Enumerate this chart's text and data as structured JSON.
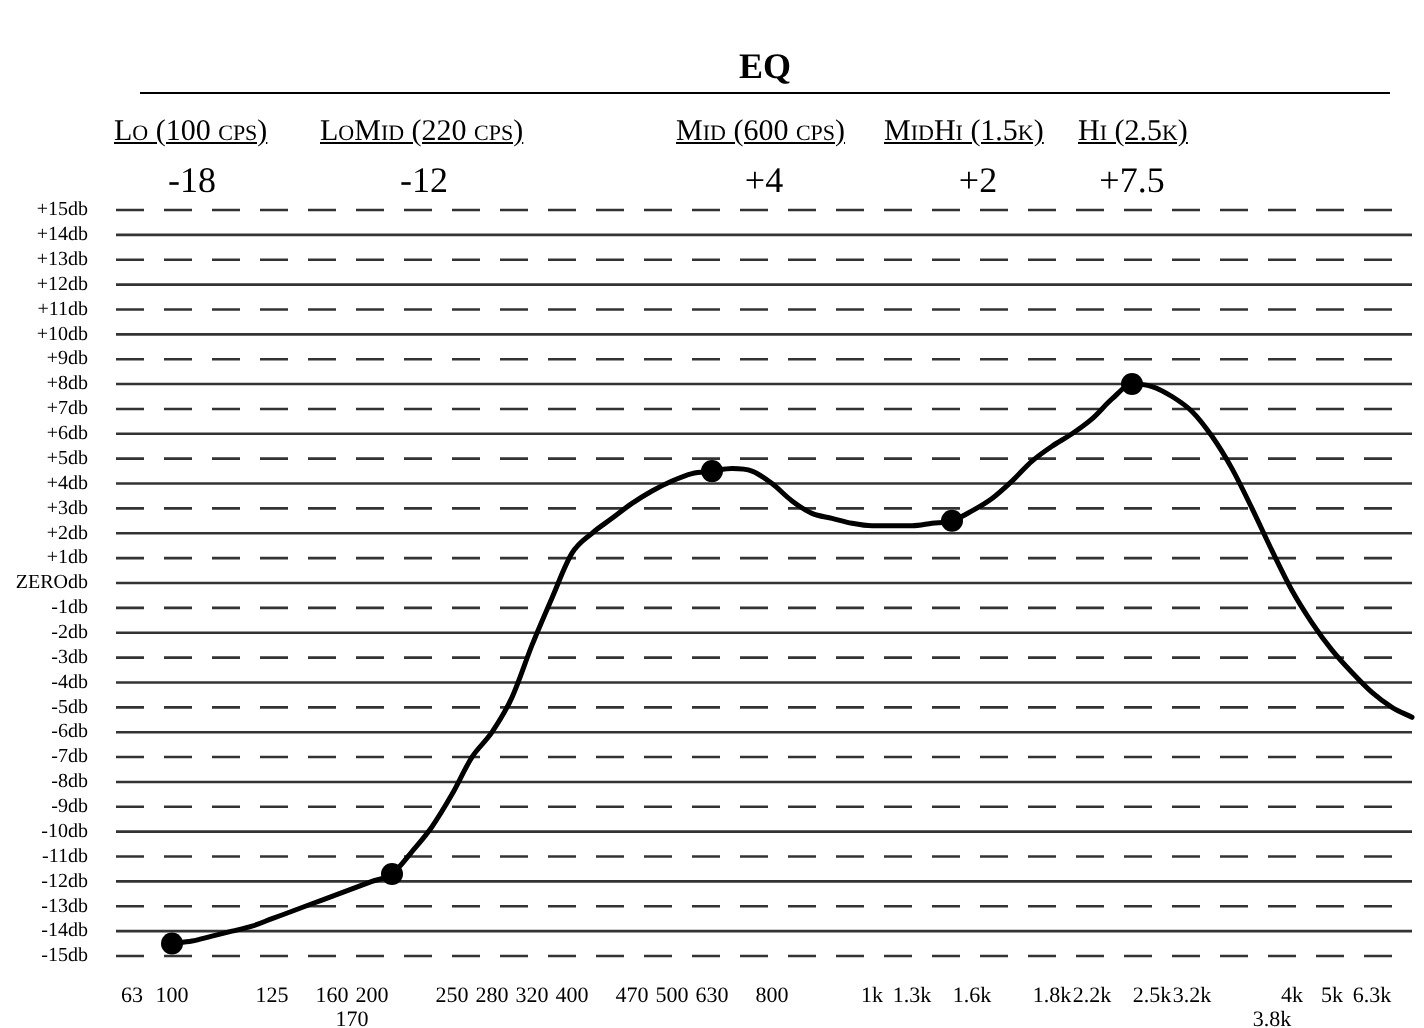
{
  "chart_data": {
    "type": "line",
    "title": "EQ",
    "annotations": [
      "Lo (100 cps)",
      "-18",
      "LoMid (220 cps)",
      "-12",
      "Mid (600 cps)",
      "+4",
      "MidHi (1.5k)",
      "+2",
      "Hi (2.5k)",
      "+7.5"
    ],
    "categories": [
      "63",
      null,
      "100",
      null,
      null,
      null,
      null,
      "125",
      null,
      null,
      "160",
      "170",
      "200",
      null,
      null,
      null,
      "250",
      null,
      "280",
      null,
      "320",
      null,
      "400",
      null,
      null,
      "470",
      null,
      "500",
      null,
      "630",
      null,
      null,
      "800",
      null,
      null,
      null,
      null,
      "1k",
      null,
      "1.3k",
      null,
      null,
      "1.6k",
      null,
      null,
      null,
      "1.8k",
      null,
      "2.2k",
      null,
      null,
      "2.5k",
      null,
      "3.2k",
      null,
      null,
      null,
      "3.8k",
      "4k",
      null,
      "5k",
      null,
      "6.3k",
      null,
      null
    ],
    "series": [
      {
        "type": "line",
        "color": "#000000",
        "marker": "none",
        "line_style": "solid",
        "values": [
          null,
          null,
          -14.5,
          -14.4,
          -14.2,
          -14.0,
          -13.8,
          -13.5,
          -13.2,
          -12.9,
          -12.6,
          -12.3,
          -12.0,
          -11.7,
          -10.8,
          -9.8,
          -8.5,
          -7.0,
          -6.0,
          -4.6,
          -2.5,
          -0.6,
          1.2,
          2.0,
          2.6,
          3.2,
          3.7,
          4.1,
          4.4,
          4.5,
          4.6,
          4.5,
          4.0,
          3.3,
          2.8,
          2.6,
          2.4,
          2.3,
          2.3,
          2.3,
          2.4,
          2.5,
          2.9,
          3.4,
          4.1,
          4.9,
          5.5,
          6.0,
          6.6,
          7.4,
          8.0,
          7.9,
          7.5,
          6.9,
          5.9,
          4.6,
          3.0,
          1.3,
          -0.3,
          -1.6,
          -2.7,
          -3.6,
          -4.4,
          -5.0,
          -5.4
        ]
      },
      {
        "type": "scatter",
        "color": "#000000",
        "marker": "circle",
        "values": [
          null,
          null,
          -14.5,
          null,
          null,
          null,
          null,
          null,
          null,
          null,
          null,
          null,
          null,
          -11.7,
          null,
          null,
          null,
          null,
          null,
          null,
          null,
          null,
          null,
          null,
          null,
          null,
          null,
          null,
          null,
          4.5,
          null,
          null,
          null,
          null,
          null,
          null,
          null,
          null,
          null,
          null,
          null,
          2.5,
          null,
          null,
          null,
          null,
          null,
          null,
          null,
          null,
          8.0,
          null,
          null,
          null,
          null,
          null,
          null,
          null,
          null,
          null,
          null,
          null,
          null,
          null,
          null
        ]
      }
    ],
    "ylim": [
      -15,
      15
    ],
    "yticks": [
      {
        "value": -15,
        "label": "-15db"
      },
      {
        "value": -14,
        "label": "-14db"
      },
      {
        "value": -13,
        "label": "-13db"
      },
      {
        "value": -12,
        "label": "-12db"
      },
      {
        "value": -11,
        "label": "-11db"
      },
      {
        "value": -10,
        "label": "-10db"
      },
      {
        "value": -9,
        "label": "-9db"
      },
      {
        "value": -8,
        "label": "-8db"
      },
      {
        "value": -7,
        "label": "-7db"
      },
      {
        "value": -6,
        "label": "-6db"
      },
      {
        "value": -5,
        "label": "-5db"
      },
      {
        "value": -4,
        "label": "-4db"
      },
      {
        "value": -3,
        "label": "-3db"
      },
      {
        "value": -2,
        "label": "-2db"
      },
      {
        "value": -1,
        "label": "-1db"
      },
      {
        "value": 0,
        "label": "ZEROdb"
      },
      {
        "value": 1,
        "label": "+1db"
      },
      {
        "value": 2,
        "label": "+2db"
      },
      {
        "value": 3,
        "label": "+3db"
      },
      {
        "value": 4,
        "label": "+4db"
      },
      {
        "value": 5,
        "label": "+5db"
      },
      {
        "value": 6,
        "label": "+6db"
      },
      {
        "value": 7,
        "label": "+7db"
      },
      {
        "value": 8,
        "label": "+8db"
      },
      {
        "value": 9,
        "label": "+9db"
      },
      {
        "value": 10,
        "label": "+10db"
      },
      {
        "value": 11,
        "label": "+11db"
      },
      {
        "value": 12,
        "label": "+12db"
      },
      {
        "value": 13,
        "label": "+13db"
      },
      {
        "value": 14,
        "label": "+14db"
      },
      {
        "value": 15,
        "label": "+15db"
      }
    ],
    "grid": "y"
  }
}
